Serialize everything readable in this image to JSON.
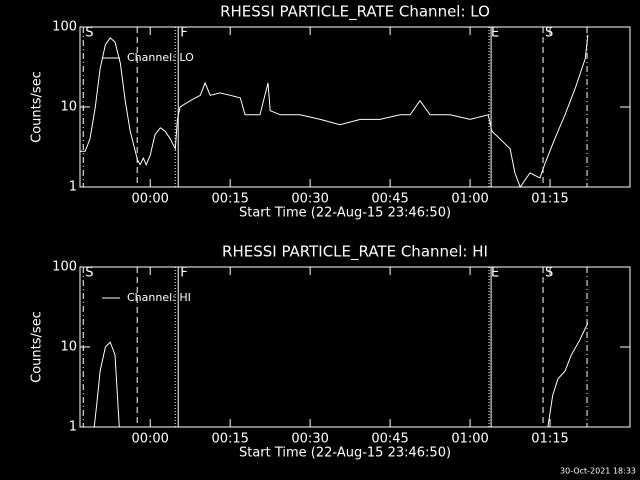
{
  "chart_data": [
    {
      "type": "line",
      "title": "RHESSI PARTICLE_RATE Channel: LO",
      "xlabel": "Start Time (22-Aug-15 23:46:50)",
      "ylabel": "Counts/sec",
      "ylog": true,
      "ylim": [
        1,
        100
      ],
      "yticks": [
        1,
        10,
        100
      ],
      "xlim": [
        -13.17,
        90
      ],
      "xticks": [
        {
          "value": 0,
          "label": "00:00"
        },
        {
          "value": 15,
          "label": "00:15"
        },
        {
          "value": 30,
          "label": "00:30"
        },
        {
          "value": 45,
          "label": "00:45"
        },
        {
          "value": 60,
          "label": "01:00"
        },
        {
          "value": 75,
          "label": "01:15"
        }
      ],
      "legend": "upper left",
      "events": [
        {
          "x": -12.56,
          "label": "S",
          "style": "dashdot"
        },
        {
          "x": -2.44,
          "style": "dashed"
        },
        {
          "x": 4.69,
          "style": "dotted"
        },
        {
          "x": 5.25,
          "label": "F",
          "style": "solid"
        },
        {
          "x": 63.56,
          "label": "E",
          "style": "dotted"
        },
        {
          "x": 63.94,
          "style": "solid"
        },
        {
          "x": 73.69,
          "label": "S",
          "style": "dashed"
        },
        {
          "x": 81.94,
          "style": "dashdot"
        }
      ],
      "x": [
        -13.1,
        -12.2,
        -11.3,
        -10.3,
        -9.4,
        -8.4,
        -7.5,
        -6.6,
        -5.6,
        -4.7,
        -3.75,
        -2.4,
        -1.9,
        -1.3,
        -0.75,
        0,
        0.9,
        1.9,
        2.8,
        3.75,
        4.7,
        5.1,
        5.6,
        7.5,
        9.4,
        10.3,
        11.25,
        13.1,
        15,
        16.9,
        17.8,
        20.6,
        22.1,
        22.5,
        24.4,
        28.1,
        31.9,
        35.6,
        39.4,
        43.1,
        46.9,
        48.75,
        50.6,
        52.5,
        56.25,
        60,
        63.4,
        64.1,
        65.6,
        67.5,
        68.4,
        69.4,
        71.25,
        73.1,
        74.1,
        75.9,
        77.8,
        79.7,
        81.6,
        82.1
      ],
      "series": [
        {
          "name": "Channel: LO",
          "color": "#ffffff",
          "values": [
            2.8,
            2.8,
            4,
            10,
            30,
            60,
            73,
            65,
            35,
            12,
            5,
            2.2,
            1.9,
            2.3,
            1.9,
            2.5,
            4.5,
            5.5,
            5,
            4,
            3,
            7,
            10,
            12,
            14,
            20,
            14,
            15,
            14,
            13,
            8,
            8,
            20,
            9,
            8,
            8,
            7,
            6,
            7,
            7,
            8,
            8,
            12,
            8,
            8,
            7,
            8,
            5,
            4,
            3,
            1.5,
            1,
            1.5,
            1.3,
            2,
            4,
            8,
            17,
            40,
            80
          ]
        }
      ]
    },
    {
      "type": "line",
      "title": "RHESSI PARTICLE_RATE Channel: HI",
      "xlabel": "Start Time (22-Aug-15 23:46:50)",
      "ylabel": "Counts/sec",
      "ylog": true,
      "ylim": [
        1,
        100
      ],
      "yticks": [
        1,
        10,
        100
      ],
      "xlim": [
        -13.17,
        90
      ],
      "xticks": [
        {
          "value": 0,
          "label": "00:00"
        },
        {
          "value": 15,
          "label": "00:15"
        },
        {
          "value": 30,
          "label": "00:30"
        },
        {
          "value": 45,
          "label": "00:45"
        },
        {
          "value": 60,
          "label": "01:00"
        },
        {
          "value": 75,
          "label": "01:15"
        }
      ],
      "legend": "upper left",
      "events": [
        {
          "x": -12.56,
          "label": "S",
          "style": "dashdot"
        },
        {
          "x": -2.44,
          "style": "dashed"
        },
        {
          "x": 4.69,
          "style": "dotted"
        },
        {
          "x": 5.25,
          "label": "F",
          "style": "solid"
        },
        {
          "x": 63.56,
          "label": "E",
          "style": "dotted"
        },
        {
          "x": 63.94,
          "style": "solid"
        },
        {
          "x": 73.69,
          "label": "S",
          "style": "dashed"
        },
        {
          "x": 81.94,
          "style": "dashdot"
        }
      ],
      "x": [
        -10.5,
        -10,
        -9.4,
        -8.4,
        -7.5,
        -6.6,
        -5.8,
        30,
        74.6,
        75.5,
        76.5,
        77.8,
        79,
        80.5,
        82.1
      ],
      "series": [
        {
          "name": "Channel: HI",
          "color": "#ffffff",
          "values": [
            1,
            2,
            5,
            10,
            11.5,
            8,
            1,
            null,
            1,
            2.5,
            4,
            5,
            8,
            12,
            20
          ]
        }
      ]
    }
  ],
  "footer": "30-Oct-2021 18:33"
}
